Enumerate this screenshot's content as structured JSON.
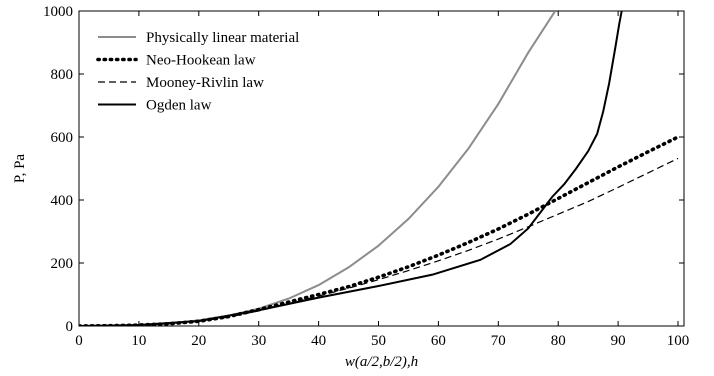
{
  "chart_data": {
    "type": "line",
    "title": "",
    "xlabel": "w(a/2,b/2),h",
    "ylabel": "P, Pa",
    "xlim": [
      0,
      101
    ],
    "ylim": [
      0,
      1000
    ],
    "xticks": [
      0,
      10,
      20,
      30,
      40,
      50,
      60,
      70,
      80,
      90,
      100
    ],
    "yticks": [
      0,
      200,
      400,
      600,
      800,
      1000
    ],
    "grid": false,
    "legend_position": "top-left",
    "series": [
      {
        "name": "Physically linear material",
        "color": "#8c8c8c",
        "style": "solid",
        "points": [
          [
            0,
            0
          ],
          [
            5,
            0.7
          ],
          [
            10,
            3
          ],
          [
            15,
            8
          ],
          [
            20,
            18
          ],
          [
            25,
            33
          ],
          [
            30,
            55
          ],
          [
            35,
            87
          ],
          [
            40,
            130
          ],
          [
            45,
            186
          ],
          [
            50,
            255
          ],
          [
            55,
            340
          ],
          [
            60,
            442
          ],
          [
            65,
            563
          ],
          [
            70,
            705
          ],
          [
            75,
            868
          ],
          [
            79.5,
            1000
          ]
        ]
      },
      {
        "name": "Neo-Hookean law",
        "color": "#000000",
        "style": "dotted",
        "points": [
          [
            0,
            0
          ],
          [
            5,
            1
          ],
          [
            10,
            3
          ],
          [
            15,
            7
          ],
          [
            20,
            15
          ],
          [
            25,
            30
          ],
          [
            30,
            52
          ],
          [
            35,
            76
          ],
          [
            40,
            100
          ],
          [
            45,
            125
          ],
          [
            50,
            155
          ],
          [
            55,
            188
          ],
          [
            60,
            225
          ],
          [
            65,
            265
          ],
          [
            70,
            308
          ],
          [
            75,
            355
          ],
          [
            80,
            405
          ],
          [
            85,
            455
          ],
          [
            90,
            505
          ],
          [
            95,
            553
          ],
          [
            100,
            600
          ]
        ]
      },
      {
        "name": "Mooney-Rivlin law",
        "color": "#000000",
        "style": "dashed",
        "points": [
          [
            0,
            0
          ],
          [
            5,
            1
          ],
          [
            10,
            3
          ],
          [
            15,
            7
          ],
          [
            20,
            15
          ],
          [
            25,
            28
          ],
          [
            30,
            48
          ],
          [
            35,
            71
          ],
          [
            40,
            95
          ],
          [
            45,
            120
          ],
          [
            50,
            147
          ],
          [
            55,
            176
          ],
          [
            60,
            207
          ],
          [
            65,
            240
          ],
          [
            70,
            276
          ],
          [
            75,
            315
          ],
          [
            80,
            355
          ],
          [
            85,
            395
          ],
          [
            90,
            440
          ],
          [
            95,
            486
          ],
          [
            100,
            532
          ]
        ]
      },
      {
        "name": "Ogden law",
        "color": "#000000",
        "style": "solid",
        "points": [
          [
            0,
            0
          ],
          [
            10,
            3
          ],
          [
            20,
            16
          ],
          [
            30,
            50
          ],
          [
            40,
            90
          ],
          [
            50,
            127
          ],
          [
            59,
            163
          ],
          [
            67,
            210
          ],
          [
            72,
            260
          ],
          [
            75,
            310
          ],
          [
            77,
            360
          ],
          [
            79,
            410
          ],
          [
            81,
            450
          ],
          [
            83,
            500
          ],
          [
            85,
            555
          ],
          [
            86.5,
            610
          ],
          [
            87.5,
            680
          ],
          [
            88.5,
            770
          ],
          [
            89.5,
            880
          ],
          [
            90.2,
            960
          ],
          [
            90.6,
            1000
          ]
        ]
      }
    ]
  }
}
